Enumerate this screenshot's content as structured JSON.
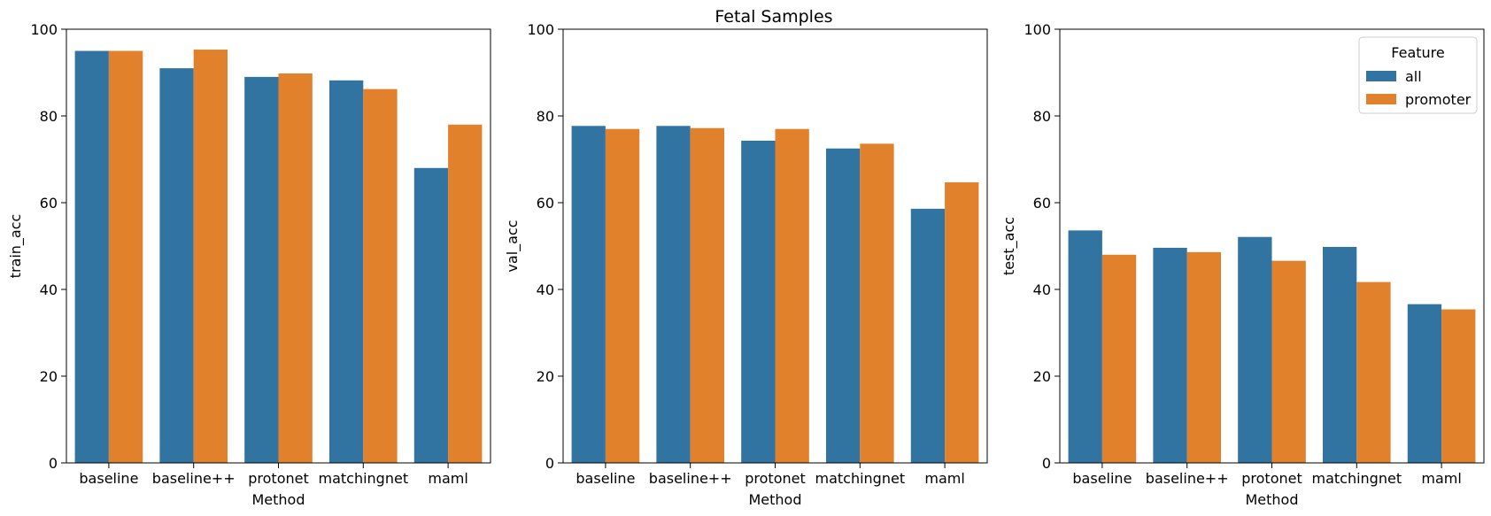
{
  "figure": {
    "title": "Fetal Samples"
  },
  "chart_data": [
    {
      "type": "bar",
      "categories": [
        "baseline",
        "baseline++",
        "protonet",
        "matchingnet",
        "maml"
      ],
      "xlabel": "Method",
      "ylabel": "train_acc",
      "ylim": [
        0,
        100
      ],
      "yticks": [
        0,
        20,
        40,
        60,
        80,
        100
      ],
      "grid": false,
      "series": [
        {
          "name": "all",
          "values": [
            95.0,
            91.0,
            89.0,
            88.2,
            68.0
          ]
        },
        {
          "name": "promoter",
          "values": [
            95.0,
            95.3,
            89.8,
            86.2,
            78.0
          ]
        }
      ]
    },
    {
      "type": "bar",
      "categories": [
        "baseline",
        "baseline++",
        "protonet",
        "matchingnet",
        "maml"
      ],
      "xlabel": "Method",
      "ylabel": "val_acc",
      "ylim": [
        0,
        100
      ],
      "yticks": [
        0,
        20,
        40,
        60,
        80,
        100
      ],
      "grid": false,
      "series": [
        {
          "name": "all",
          "values": [
            77.7,
            77.7,
            74.3,
            72.5,
            58.6
          ]
        },
        {
          "name": "promoter",
          "values": [
            77.0,
            77.2,
            77.0,
            73.6,
            64.7
          ]
        }
      ]
    },
    {
      "type": "bar",
      "categories": [
        "baseline",
        "baseline++",
        "protonet",
        "matchingnet",
        "maml"
      ],
      "xlabel": "Method",
      "ylabel": "test_acc",
      "ylim": [
        0,
        100
      ],
      "yticks": [
        0,
        20,
        40,
        60,
        80,
        100
      ],
      "grid": false,
      "legend": {
        "title": "Feature",
        "placement": "top-right",
        "entries": [
          "all",
          "promoter"
        ]
      },
      "series": [
        {
          "name": "all",
          "values": [
            53.6,
            49.6,
            52.1,
            49.8,
            36.6
          ]
        },
        {
          "name": "promoter",
          "values": [
            48.0,
            48.6,
            46.6,
            41.7,
            35.4
          ]
        }
      ]
    }
  ],
  "colors": {
    "all": "#3274a1",
    "promoter": "#e1812c",
    "axis": "#000000"
  }
}
